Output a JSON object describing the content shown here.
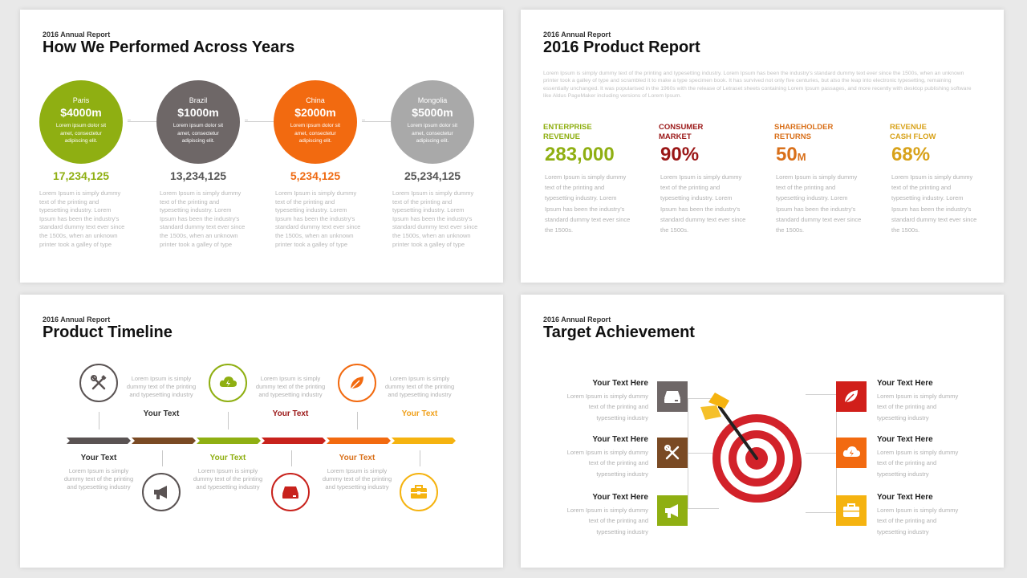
{
  "slide1": {
    "kicker": "2016 Annual Report",
    "title": "How We Performed Across Years",
    "items": [
      {
        "city": "Paris",
        "amount": "$4000m",
        "circle_text": "Lorem ipsum dolor sit amet, consectetur adipiscing elit.",
        "stat": "17,234,125",
        "color": "#8faf12",
        "stat_color": "#8faf12",
        "desc": "Lorem Ipsum is simply dummy text of the printing and typesetting industry. Lorem Ipsum has been the industry's standard dummy text ever since the 1500s, when an unknown printer took a galley of type"
      },
      {
        "city": "Brazil",
        "amount": "$1000m",
        "circle_text": "Lorem ipsum dolor sit amet, consectetur adipiscing elit.",
        "stat": "13,234,125",
        "color": "#6e6767",
        "stat_color": "#555555",
        "desc": "Lorem Ipsum is simply dummy text of the printing and typesetting industry. Lorem Ipsum has been the industry's standard dummy text ever since the 1500s, when an unknown printer took a galley of type"
      },
      {
        "city": "China",
        "amount": "$2000m",
        "circle_text": "Lorem ipsum dolor sit amet, consectetur adipiscing elit.",
        "stat": "5,234,125",
        "color": "#f26a10",
        "stat_color": "#ef6a12",
        "desc": "Lorem Ipsum is simply dummy text of the printing and typesetting industry. Lorem Ipsum has been the industry's standard dummy text ever since the 1500s, when an unknown printer took a galley of type"
      },
      {
        "city": "Mongolia",
        "amount": "$5000m",
        "circle_text": "Lorem ipsum dolor sit amet, consectetur adipiscing elit.",
        "stat": "25,234,125",
        "color": "#a9a9a9",
        "stat_color": "#555555",
        "desc": "Lorem Ipsum is simply dummy text of the printing and typesetting industry. Lorem Ipsum has been the industry's standard dummy text ever since the 1500s, when an unknown printer took a galley of type"
      }
    ]
  },
  "slide2": {
    "kicker": "2016 Annual Report",
    "title": "2016 Product Report",
    "intro": "Lorem Ipsum is simply dummy text of the printing and typesetting industry. Lorem Ipsum has been the industry's standard dummy text ever since the 1500s, when an unknown printer took a galley of type and scrambled it to make a type specimen book. It has survived not only five centuries, but also the leap into electronic typesetting, remaining essentially unchanged. It was popularised in the 1960s with the release of Letraset sheets containing Lorem Ipsum passages, and more recently with desktop publishing software like Aldus PageMaker including versions of Lorem Ipsum.",
    "metrics": [
      {
        "label_line1": "ENTERPRISE",
        "label_line2": "REVENUE",
        "value": "283,000",
        "unit": "",
        "color": "#8faf12",
        "desc": "Lorem Ipsum is simply dummy text of the printing and typesetting industry. Lorem Ipsum has been the industry's standard dummy text ever since the 1500s."
      },
      {
        "label_line1": "CONSUMER",
        "label_line2": "MARKET",
        "value": "90%",
        "unit": "",
        "color": "#9a1616",
        "desc": "Lorem Ipsum is simply dummy text of the printing and typesetting industry. Lorem Ipsum has been the industry's standard dummy text ever since the 1500s."
      },
      {
        "label_line1": "SHAREHOLDER",
        "label_line2": "RETURNS",
        "value": "50",
        "unit": "M",
        "color": "#d9701a",
        "desc": "Lorem Ipsum is simply dummy text of the printing and typesetting industry. Lorem Ipsum has been the industry's standard dummy text ever since the 1500s."
      },
      {
        "label_line1": "REVENUE",
        "label_line2": "CASH FLOW",
        "value": "68%",
        "unit": "",
        "color": "#d8a21a",
        "desc": "Lorem Ipsum is simply dummy text of the printing and typesetting industry. Lorem Ipsum has been the industry's standard dummy text ever since the 1500s."
      }
    ]
  },
  "slide3": {
    "kicker": "2016 Annual Report",
    "title": "Product Timeline",
    "bar_colors": [
      "#5a5353",
      "#7a4a24",
      "#8faf12",
      "#c8221c",
      "#f26a10",
      "#f5b310"
    ],
    "top_items": [
      {
        "icon": "tools-icon",
        "color": "#5a5353",
        "label": "Your Text",
        "label_color": "#333333",
        "desc": "Lorem Ipsum is simply dummy text of the printing and typesetting industry"
      },
      {
        "icon": "cloud-lightning-icon",
        "color": "#8faf12",
        "label": "Your Text",
        "label_color": "#9a1616",
        "desc": "Lorem Ipsum is simply dummy text of the printing and typesetting industry"
      },
      {
        "icon": "leaf-icon",
        "color": "#f26a10",
        "label": "Your Text",
        "label_color": "#f0a01a",
        "desc": "Lorem Ipsum is simply dummy text of the printing and typesetting industry"
      }
    ],
    "bottom_items": [
      {
        "icon": "megaphone-icon",
        "color": "#5a5353",
        "label": "Your Text",
        "label_color": "#333333",
        "desc": "Lorem Ipsum is simply dummy text of the printing and typesetting industry"
      },
      {
        "icon": "drive-icon",
        "color": "#c8221c",
        "label": "Your Text",
        "label_color": "#8faf12",
        "desc": "Lorem Ipsum is simply dummy text of the printing and typesetting industry"
      },
      {
        "icon": "briefcase-icon",
        "color": "#f5b310",
        "label": "Your Text",
        "label_color": "#d9701a",
        "desc": "Lorem Ipsum is simply dummy text of the printing and typesetting industry"
      }
    ]
  },
  "slide4": {
    "kicker": "2016 Annual Report",
    "title": "Target Achievement",
    "left_items": [
      {
        "icon": "drive-icon",
        "color": "#6e6767",
        "heading": "Your Text Here",
        "desc": "Lorem Ipsum is simply dummy text of the printing and typesetting industry"
      },
      {
        "icon": "tools-icon",
        "color": "#7a4a24",
        "heading": "Your Text Here",
        "desc": "Lorem Ipsum is simply dummy text of the printing and typesetting industry"
      },
      {
        "icon": "megaphone-icon",
        "color": "#8faf12",
        "heading": "Your Text Here",
        "desc": "Lorem Ipsum is simply dummy text of the printing and typesetting industry"
      }
    ],
    "right_items": [
      {
        "icon": "leaf-icon",
        "color": "#d11f1a",
        "heading": "Your Text Here",
        "desc": "Lorem Ipsum is simply dummy text of the printing and typesetting industry"
      },
      {
        "icon": "cloud-lightning-icon",
        "color": "#f26a10",
        "heading": "Your Text Here",
        "desc": "Lorem Ipsum is simply dummy text of the printing and typesetting industry"
      },
      {
        "icon": "briefcase-icon",
        "color": "#f5b310",
        "heading": "Your Text Here",
        "desc": "Lorem Ipsum is simply dummy text of the printing and typesetting industry"
      }
    ]
  }
}
